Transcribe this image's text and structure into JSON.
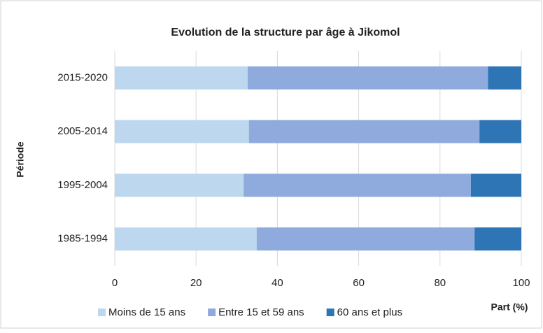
{
  "chart_data": {
    "type": "stacked-bar-horizontal",
    "title": "Evolution de la structure par âge à Jikomol",
    "x_label": "Part (%)",
    "y_label": "Période",
    "categories": [
      "1985-1994",
      "1995-2004",
      "2005-2014",
      "2015-2020"
    ],
    "series": [
      {
        "name": "Moins de 15 ans",
        "color": "#bdd7ee",
        "values": [
          34.9,
          31.7,
          33.0,
          32.7
        ]
      },
      {
        "name": "Entre 15 et 59 ans",
        "color": "#8faadc",
        "values": [
          53.6,
          55.9,
          56.7,
          59.1
        ]
      },
      {
        "name": "60 ans et plus",
        "color": "#2e75b6",
        "values": [
          11.5,
          12.4,
          10.3,
          8.2
        ]
      }
    ],
    "xlim": [
      0,
      100
    ],
    "xticks": [
      0,
      20,
      40,
      60,
      80,
      100
    ],
    "grid": true
  }
}
